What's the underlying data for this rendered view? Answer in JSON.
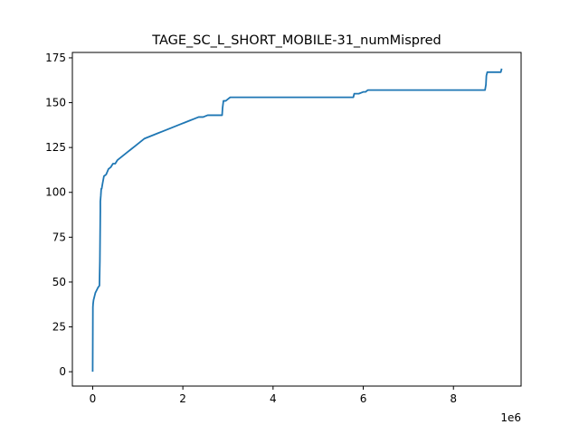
{
  "chart_data": {
    "type": "line",
    "title": "TAGE_SC_L_SHORT_MOBILE-31_numMispred",
    "xlabel": "",
    "ylabel": "",
    "x_offset_label": "1e6",
    "xlim": [
      -0.45,
      9.5
    ],
    "ylim": [
      -8,
      178
    ],
    "x_ticks": [
      0,
      2,
      4,
      6,
      8
    ],
    "x_tick_labels": [
      "0",
      "2",
      "4",
      "6",
      "8"
    ],
    "y_ticks": [
      0,
      25,
      50,
      75,
      100,
      125,
      150,
      175
    ],
    "y_tick_labels": [
      "0",
      "25",
      "50",
      "75",
      "100",
      "125",
      "150",
      "175"
    ],
    "grid": false,
    "series": [
      {
        "color": "#1f77b4",
        "x": [
          0,
          0.005,
          0.01,
          0.02,
          0.04,
          0.06,
          0.08,
          0.1,
          0.12,
          0.15,
          0.16,
          0.17,
          0.17,
          0.18,
          0.19,
          0.2,
          0.22,
          0.25,
          0.3,
          0.35,
          0.4,
          0.45,
          0.5,
          0.55,
          0.65,
          0.75,
          0.85,
          0.95,
          1.05,
          1.15,
          1.25,
          1.35,
          1.45,
          1.55,
          1.65,
          1.75,
          1.85,
          1.95,
          2.05,
          2.15,
          2.25,
          2.35,
          2.45,
          2.55,
          2.65,
          2.75,
          2.87,
          2.88,
          2.9,
          2.95,
          3.0,
          3.05,
          3.15,
          3.3,
          4.0,
          5.0,
          5.78,
          5.8,
          5.9,
          6.0,
          6.05,
          6.1,
          7.0,
          8.0,
          8.7,
          8.72,
          8.73,
          8.75,
          9.0,
          9.05,
          9.07
        ],
        "y": [
          0,
          36,
          38,
          40,
          42,
          44,
          45,
          46,
          47,
          48,
          62,
          90,
          95,
          98,
          102,
          102,
          105,
          109,
          110,
          113,
          114,
          116,
          116,
          118,
          120,
          122,
          124,
          126,
          128,
          130,
          131,
          132,
          133,
          134,
          135,
          136,
          137,
          138,
          139,
          140,
          141,
          142,
          142,
          143,
          143,
          143,
          143,
          147,
          151,
          151,
          152,
          153,
          153,
          153,
          153,
          153,
          153,
          155,
          155,
          156,
          156,
          157,
          157,
          157,
          157,
          160,
          165,
          167,
          167,
          167,
          169
        ]
      }
    ]
  }
}
